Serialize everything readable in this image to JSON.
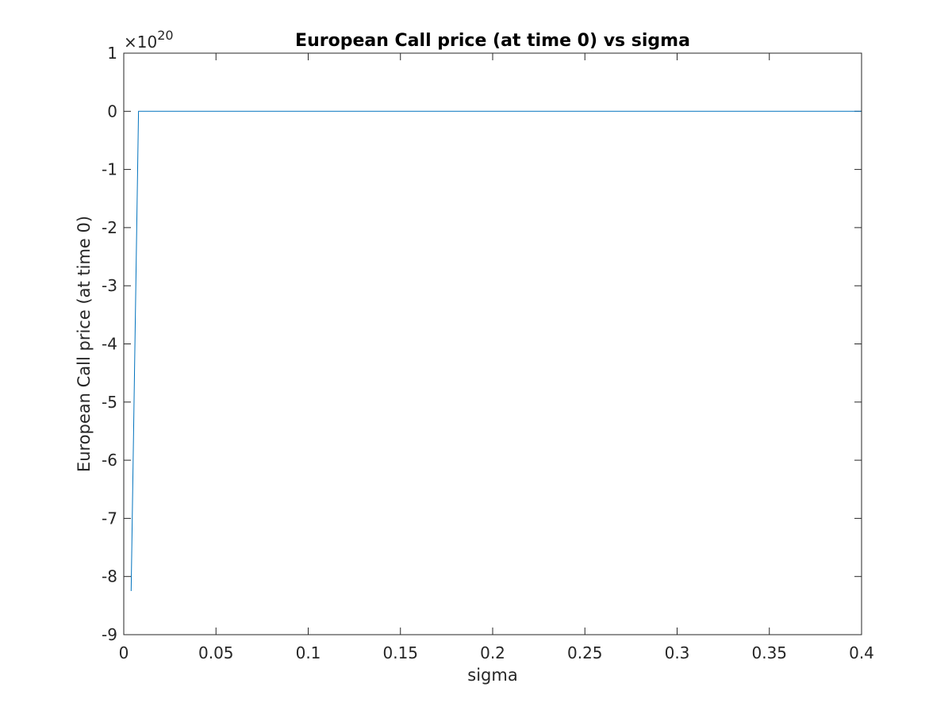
{
  "chart_data": {
    "type": "line",
    "title": "European Call price (at time 0) vs sigma",
    "xlabel": "sigma",
    "ylabel": "European Call price (at time 0)",
    "y_multiplier": {
      "base": "×10",
      "exponent": "20"
    },
    "xlim": [
      0,
      0.4
    ],
    "ylim": [
      -9,
      1
    ],
    "x_ticks": [
      0,
      0.05,
      0.1,
      0.15,
      0.2,
      0.25,
      0.3,
      0.35,
      0.4
    ],
    "x_tick_labels": [
      "0",
      "0.05",
      "0.1",
      "0.15",
      "0.2",
      "0.25",
      "0.3",
      "0.35",
      "0.4"
    ],
    "y_ticks": [
      1,
      0,
      -1,
      -2,
      -3,
      -4,
      -5,
      -6,
      -7,
      -8,
      -9
    ],
    "y_tick_labels": [
      "1",
      "0",
      "-1",
      "-2",
      "-3",
      "-4",
      "-5",
      "-6",
      "-7",
      "-8",
      "-9"
    ],
    "grid": false,
    "line_color": "#0072BD",
    "series": [
      {
        "x": [
          0.004,
          0.008,
          0.012,
          0.05,
          0.1,
          0.15,
          0.2,
          0.25,
          0.3,
          0.35,
          0.4
        ],
        "y": [
          -8.25,
          0,
          0,
          0,
          0,
          0,
          0,
          0,
          0,
          0,
          0
        ]
      }
    ]
  }
}
